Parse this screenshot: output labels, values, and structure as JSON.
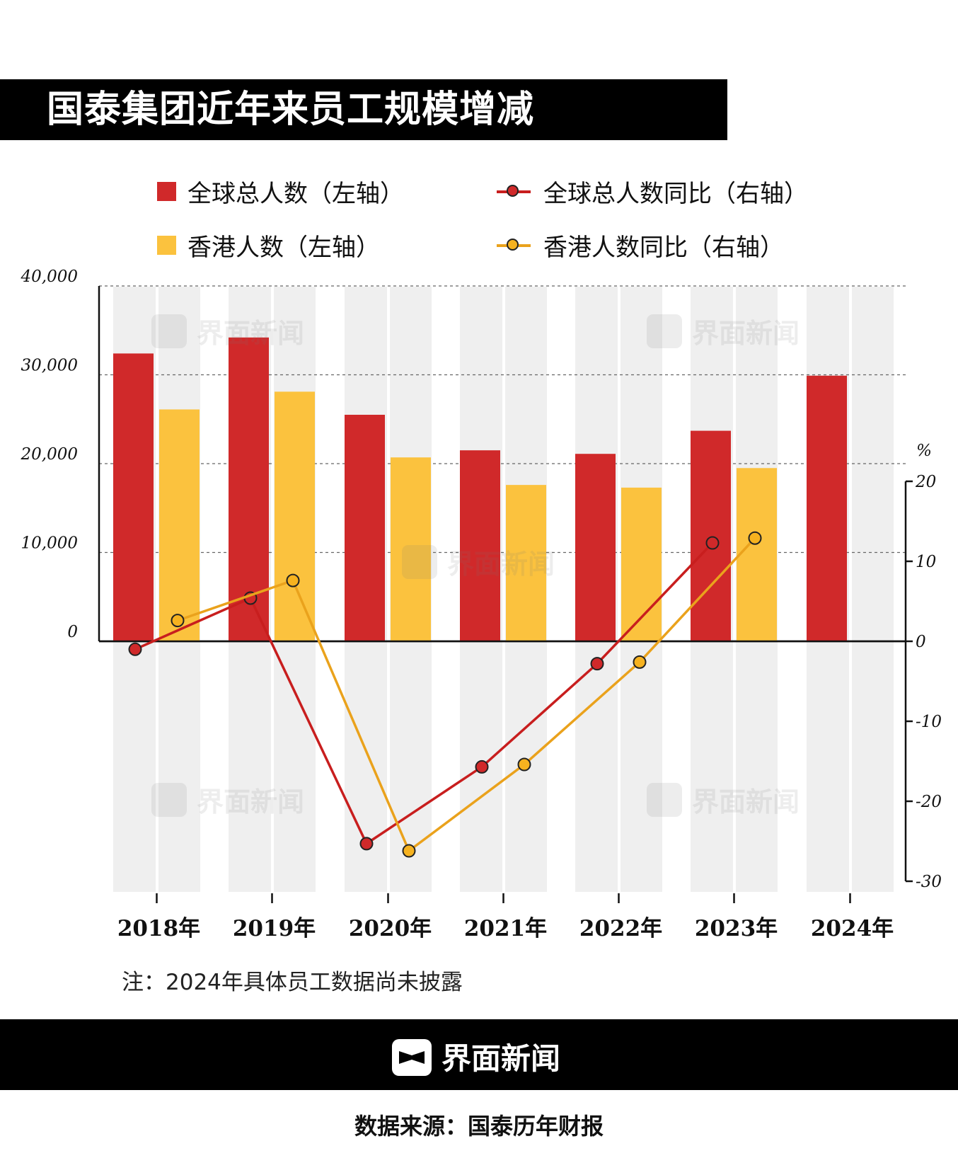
{
  "title": "国泰集团近年来员工规模增减",
  "legend": {
    "global": "全球总人数（左轴）",
    "global_yoy": "全球总人数同比（右轴）",
    "hk": "香港人数（左轴）",
    "hk_yoy": "香港人数同比（右轴）"
  },
  "colors": {
    "global": "#d0292a",
    "hk": "#fbc23e",
    "global_line": "#c81e1e",
    "hk_line": "#eaa21c",
    "band": "#efefef"
  },
  "chart_data": {
    "type": "bar+line",
    "categories": [
      "2018年",
      "2019年",
      "2020年",
      "2021年",
      "2022年",
      "2023年",
      "2024年"
    ],
    "bar_series": [
      {
        "name": "全球总人数（左轴）",
        "values": [
          32400,
          34200,
          25500,
          21500,
          21100,
          23700,
          29900
        ]
      },
      {
        "name": "香港人数（左轴）",
        "values": [
          26100,
          28100,
          20700,
          17600,
          17300,
          19500,
          null
        ]
      }
    ],
    "line_series": [
      {
        "name": "全球总人数同比（右轴）",
        "values": [
          -1,
          5.4,
          -25.3,
          -15.7,
          -2.8,
          12.3,
          null
        ]
      },
      {
        "name": "香港人数同比（右轴）",
        "values": [
          2.6,
          7.6,
          -26.2,
          -15.4,
          -2.6,
          12.9,
          null
        ]
      }
    ],
    "left_axis": {
      "range": [
        0,
        40000
      ],
      "ticks": [
        "0",
        "10,000",
        "20,000",
        "30,000",
        "40,000"
      ]
    },
    "right_axis": {
      "label": "%",
      "range": [
        -30,
        20
      ],
      "ticks": [
        "20",
        "10",
        "0",
        "-10",
        "-20",
        "-30"
      ]
    },
    "grid": true
  },
  "note": "注：2024年具体员工数据尚未披露",
  "watermark": "界面新闻",
  "footer_brand": "界面新闻",
  "source": "数据来源：国泰历年财报"
}
